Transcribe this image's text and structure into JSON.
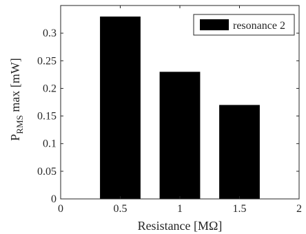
{
  "chart_data": {
    "type": "bar",
    "x": [
      0.5,
      1.0,
      1.5
    ],
    "series": [
      {
        "name": "resonance 2",
        "values": [
          0.33,
          0.23,
          0.17
        ],
        "color": "#000000"
      }
    ],
    "xlabel": "Resistance [MΩ]",
    "ylabel": {
      "main": "P",
      "subscript": "RMS",
      "rest": " max [mW]"
    },
    "xlim": [
      0,
      2
    ],
    "ylim": [
      0,
      0.35
    ],
    "xticks": [
      0,
      0.5,
      1,
      1.5,
      2
    ],
    "xtick_labels": [
      "0",
      "0.5",
      "1",
      "1.5",
      "2"
    ],
    "yticks": [
      0,
      0.05,
      0.1,
      0.15,
      0.2,
      0.25,
      0.3
    ],
    "ytick_labels": [
      "0",
      "0.05",
      "0.1",
      "0.15",
      "0.2",
      "0.25",
      "0.3"
    ],
    "legend": {
      "position": "top-right",
      "label": "resonance 2"
    },
    "grid": false
  }
}
